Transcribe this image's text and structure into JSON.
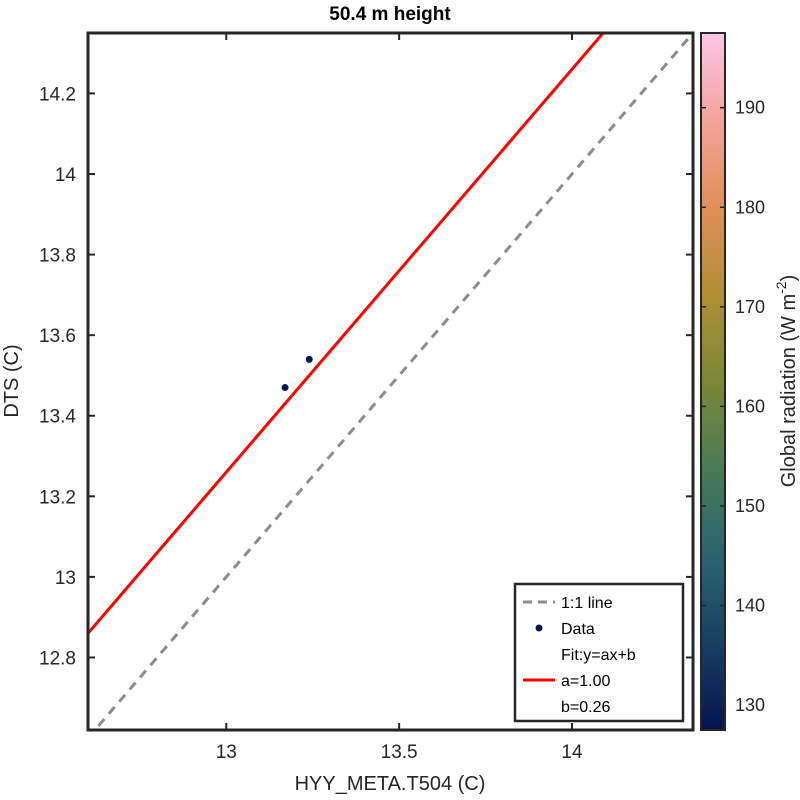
{
  "chart_data": {
    "type": "scatter",
    "title": "50.4 m height",
    "xlabel": "HYY_META.T504 (C)",
    "ylabel": "DTS (C)",
    "xlim": [
      12.6,
      14.35
    ],
    "ylim": [
      12.62,
      14.35
    ],
    "x_ticks": [
      13,
      13.5,
      14
    ],
    "x_tick_labels": [
      "13",
      "13.5",
      "14"
    ],
    "y_ticks": [
      12.8,
      13,
      13.2,
      13.4,
      13.6,
      13.8,
      14,
      14.2
    ],
    "y_tick_labels": [
      "12.8",
      "13",
      "13.2",
      "13.4",
      "13.6",
      "13.8",
      "14",
      "14.2"
    ],
    "grid": false,
    "points": [
      {
        "x": 13.17,
        "y": 13.47,
        "radiation": 128
      },
      {
        "x": 13.24,
        "y": 13.54,
        "radiation": 128
      }
    ],
    "fit": {
      "a": 1.0,
      "b": 0.26
    },
    "colorbar": {
      "label": "Global radiation (W m",
      "label_superscript": "-2",
      "label_close": ")",
      "range": [
        127.5,
        197.5
      ],
      "ticks": [
        130,
        140,
        150,
        160,
        170,
        180,
        190
      ],
      "tick_labels": [
        "130",
        "140",
        "150",
        "160",
        "170",
        "180",
        "190"
      ],
      "colors": [
        "#04144e",
        "#184060",
        "#2a6470",
        "#4a7a55",
        "#7a8838",
        "#b08f35",
        "#e08f5a",
        "#f4a39a",
        "#fbc6e8"
      ]
    },
    "legend": {
      "placement": "bottom-right",
      "entries": [
        {
          "label": "1:1 line",
          "style": "dashed",
          "color": "#8c8c8c"
        },
        {
          "label": "Data",
          "style": "marker",
          "color": "#04144e"
        },
        {
          "label": "Fit:y=ax+b",
          "style": "none"
        },
        {
          "label": "a=1.00",
          "style": "line",
          "color": "#ff0000"
        },
        {
          "label": "b=0.26",
          "style": "none"
        }
      ]
    },
    "one_to_one_color": "#8c8c8c",
    "fit_color": "#ff0000"
  }
}
